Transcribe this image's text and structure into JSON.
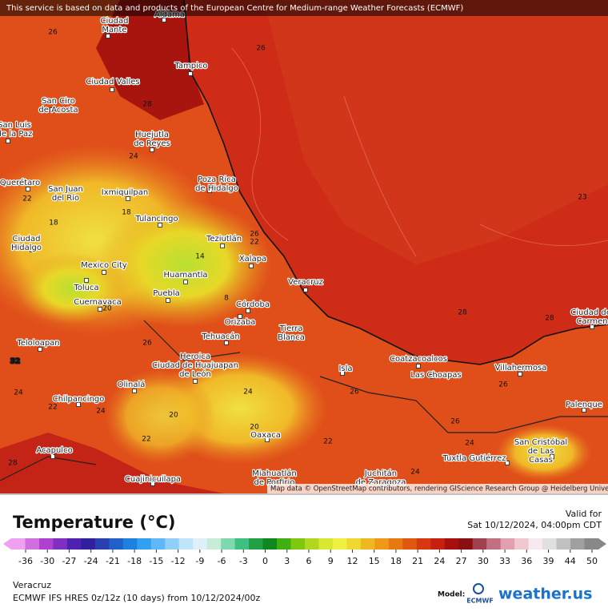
{
  "attribution": "This service is based on data and products of the European Centre for Medium-range Weather Forecasts (ECMWF)",
  "map_credit": "Map data © OpenStreetMap contributors, rendering GIScience Research Group @ Heidelberg University",
  "cities": [
    {
      "lines": [
        "Aldama"
      ]
    },
    {
      "lines": [
        "Ciudad",
        "Mante"
      ]
    },
    {
      "lines": [
        "Tampico"
      ]
    },
    {
      "lines": [
        "Ciudad Valles"
      ]
    },
    {
      "lines": [
        "San Ciro",
        "de Acosta"
      ]
    },
    {
      "lines": [
        "San Luis",
        "de la Paz"
      ]
    },
    {
      "lines": [
        "Huejutla",
        "de Reyes"
      ]
    },
    {
      "lines": [
        "Poza Rica",
        "de Hidalgo"
      ]
    },
    {
      "lines": [
        "Querétaro"
      ]
    },
    {
      "lines": [
        "San Juan",
        "del Río"
      ]
    },
    {
      "lines": [
        "Ixmiquilpan"
      ]
    },
    {
      "lines": [
        "Tulancingo"
      ]
    },
    {
      "lines": [
        "Teziutlán"
      ]
    },
    {
      "lines": [
        "Xalapa"
      ]
    },
    {
      "lines": [
        "Ciudad",
        "Hidalgo"
      ]
    },
    {
      "lines": [
        "Mexico City"
      ]
    },
    {
      "lines": [
        "Huamantla"
      ]
    },
    {
      "lines": [
        "Toluca"
      ]
    },
    {
      "lines": [
        "Puebla"
      ]
    },
    {
      "lines": [
        "Cuernavaca"
      ]
    },
    {
      "lines": [
        "Veracruz"
      ]
    },
    {
      "lines": [
        "Córdoba"
      ]
    },
    {
      "lines": [
        "Orizaba"
      ]
    },
    {
      "lines": [
        "Tierra",
        "Blanca"
      ]
    },
    {
      "lines": [
        "Tehuacán"
      ]
    },
    {
      "lines": [
        "Teloloapan"
      ]
    },
    {
      "lines": [
        "Heroica",
        "Ciudad de Huajuapan",
        "de León"
      ]
    },
    {
      "lines": [
        "Coatzacoalcos"
      ]
    },
    {
      "lines": [
        "Las Choapas"
      ]
    },
    {
      "lines": [
        "Villahermosa"
      ]
    },
    {
      "lines": [
        "Isla"
      ]
    },
    {
      "lines": [
        "Olinalá"
      ]
    },
    {
      "lines": [
        "Chilpancingo"
      ]
    },
    {
      "lines": [
        "Ciudad del",
        "Carmen"
      ]
    },
    {
      "lines": [
        "Palenque"
      ]
    },
    {
      "lines": [
        "Oaxaca"
      ]
    },
    {
      "lines": [
        "San Cristóbal",
        "de Las",
        "Casas"
      ]
    },
    {
      "lines": [
        "Tuxtla Gutiérrez"
      ]
    },
    {
      "lines": [
        "Acapulco"
      ]
    },
    {
      "lines": [
        "Juchitán",
        "de Zaragoza"
      ]
    },
    {
      "lines": [
        "Miahuatlán",
        "de Porfirio"
      ]
    },
    {
      "lines": [
        "Cuajinicuilapa"
      ]
    }
  ],
  "isotherm_labels": [
    26,
    26,
    28,
    24,
    23,
    22,
    18,
    18,
    22,
    26,
    14,
    8,
    20,
    32,
    26,
    28,
    28,
    24,
    22,
    24,
    20,
    24,
    20,
    22,
    26,
    26,
    24,
    22,
    28,
    24,
    26
  ],
  "legend": {
    "title": "Temperature (°C)",
    "valid_label": "Valid for",
    "valid_time": "Sat 10/12/2024, 04:00pm CDT",
    "ticks": [
      -36,
      -30,
      -27,
      -24,
      -21,
      -18,
      -15,
      -12,
      -9,
      -6,
      -3,
      0,
      3,
      6,
      9,
      12,
      15,
      18,
      21,
      24,
      27,
      30,
      33,
      36,
      39,
      44,
      50
    ],
    "colors": [
      "#f0a0f0",
      "#d070e0",
      "#b040d0",
      "#8030c0",
      "#5020b0",
      "#3020a0",
      "#2840b0",
      "#2060c8",
      "#2080e0",
      "#30a0f0",
      "#60b8f8",
      "#90d0f8",
      "#c0e4fa",
      "#e0f0f8",
      "#c8ecd8",
      "#80d8b0",
      "#40c080",
      "#20a040",
      "#108820",
      "#40b010",
      "#80c810",
      "#b0d820",
      "#d8e830",
      "#f0f040",
      "#f0d830",
      "#f0b820",
      "#f09818",
      "#e87810",
      "#e05810",
      "#d83810",
      "#c82010",
      "#a81010",
      "#881010",
      "#a04050",
      "#c07080",
      "#e0a0b0",
      "#f0c8d0",
      "#f8e8f0",
      "#e0e0e0",
      "#c0c0c0",
      "#a0a0a0",
      "#888888"
    ]
  },
  "footer": {
    "location": "Veracruz",
    "model_run": "ECMWF IFS HRES 0z/12z (10 days) from 10/12/2024/00z",
    "model_label": "Model:",
    "model_name": "ECMWF",
    "brand": "weather.us"
  }
}
